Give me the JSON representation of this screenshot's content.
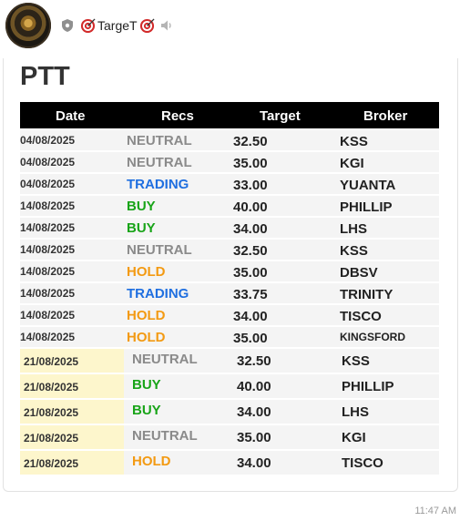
{
  "header": {
    "channel_name": "TargeT",
    "colors": {
      "target_red": "#d22b2b"
    }
  },
  "message": {
    "title": "PTT",
    "timestamp": "11:47 AM"
  },
  "table": {
    "columns": [
      "Date",
      "Recs",
      "Target",
      "Broker"
    ],
    "rows": [
      {
        "date": "04/08/2025",
        "rec": "NEUTRAL",
        "target": "32.50",
        "broker": "KSS"
      },
      {
        "date": "04/08/2025",
        "rec": "NEUTRAL",
        "target": "35.00",
        "broker": "KGI"
      },
      {
        "date": "04/08/2025",
        "rec": "TRADING",
        "target": "33.00",
        "broker": "YUANTA"
      },
      {
        "date": "14/08/2025",
        "rec": "BUY",
        "target": "40.00",
        "broker": "PHILLIP"
      },
      {
        "date": "14/08/2025",
        "rec": "BUY",
        "target": "34.00",
        "broker": "LHS"
      },
      {
        "date": "14/08/2025",
        "rec": "NEUTRAL",
        "target": "32.50",
        "broker": "KSS"
      },
      {
        "date": "14/08/2025",
        "rec": "HOLD",
        "target": "35.00",
        "broker": "DBSV"
      },
      {
        "date": "14/08/2025",
        "rec": "TRADING",
        "target": "33.75",
        "broker": "TRINITY"
      },
      {
        "date": "14/08/2025",
        "rec": "HOLD",
        "target": "34.00",
        "broker": "TISCO"
      },
      {
        "date": "14/08/2025",
        "rec": "HOLD",
        "target": "35.00",
        "broker": "KINGSFORD"
      }
    ],
    "highlighted_rows": [
      {
        "date": "21/08/2025",
        "rec": "NEUTRAL",
        "target": "32.50",
        "broker": "KSS"
      },
      {
        "date": "21/08/2025",
        "rec": "BUY",
        "target": "40.00",
        "broker": "PHILLIP"
      },
      {
        "date": "21/08/2025",
        "rec": "BUY",
        "target": "34.00",
        "broker": "LHS"
      },
      {
        "date": "21/08/2025",
        "rec": "NEUTRAL",
        "target": "35.00",
        "broker": "KGI"
      },
      {
        "date": "21/08/2025",
        "rec": "HOLD",
        "target": "34.00",
        "broker": "TISCO"
      }
    ],
    "rec_colors": {
      "NEUTRAL": "#8a8a8a",
      "TRADING": "#1f6fe0",
      "BUY": "#18a418",
      "HOLD": "#f39a12"
    },
    "highlight_color": "#fdf6cc"
  }
}
